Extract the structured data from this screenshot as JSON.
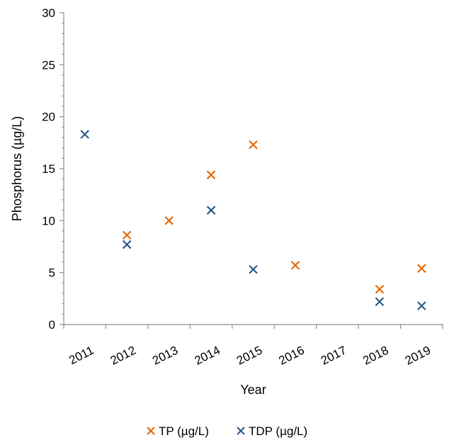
{
  "chart_data": {
    "type": "scatter",
    "title": "",
    "xlabel": "Year",
    "ylabel": "Phosphorus (µg/L)",
    "categories": [
      "2011",
      "2012",
      "2013",
      "2014",
      "2015",
      "2016",
      "2017",
      "2018",
      "2019"
    ],
    "ylim": [
      0,
      30
    ],
    "yticks": [
      "0",
      "5",
      "10",
      "15",
      "20",
      "25",
      "30"
    ],
    "grid": false,
    "legend": "bottom",
    "series": [
      {
        "name": "TP (µg/L)",
        "color": "#E46C0A",
        "marker": "x",
        "values": [
          null,
          8.6,
          10.0,
          14.4,
          17.3,
          5.7,
          null,
          3.4,
          5.4
        ]
      },
      {
        "name": "TDP (µg/L)",
        "color": "#2E5C8A",
        "marker": "x",
        "values": [
          18.3,
          7.7,
          null,
          11.0,
          5.3,
          null,
          null,
          2.2,
          1.8
        ]
      }
    ]
  }
}
